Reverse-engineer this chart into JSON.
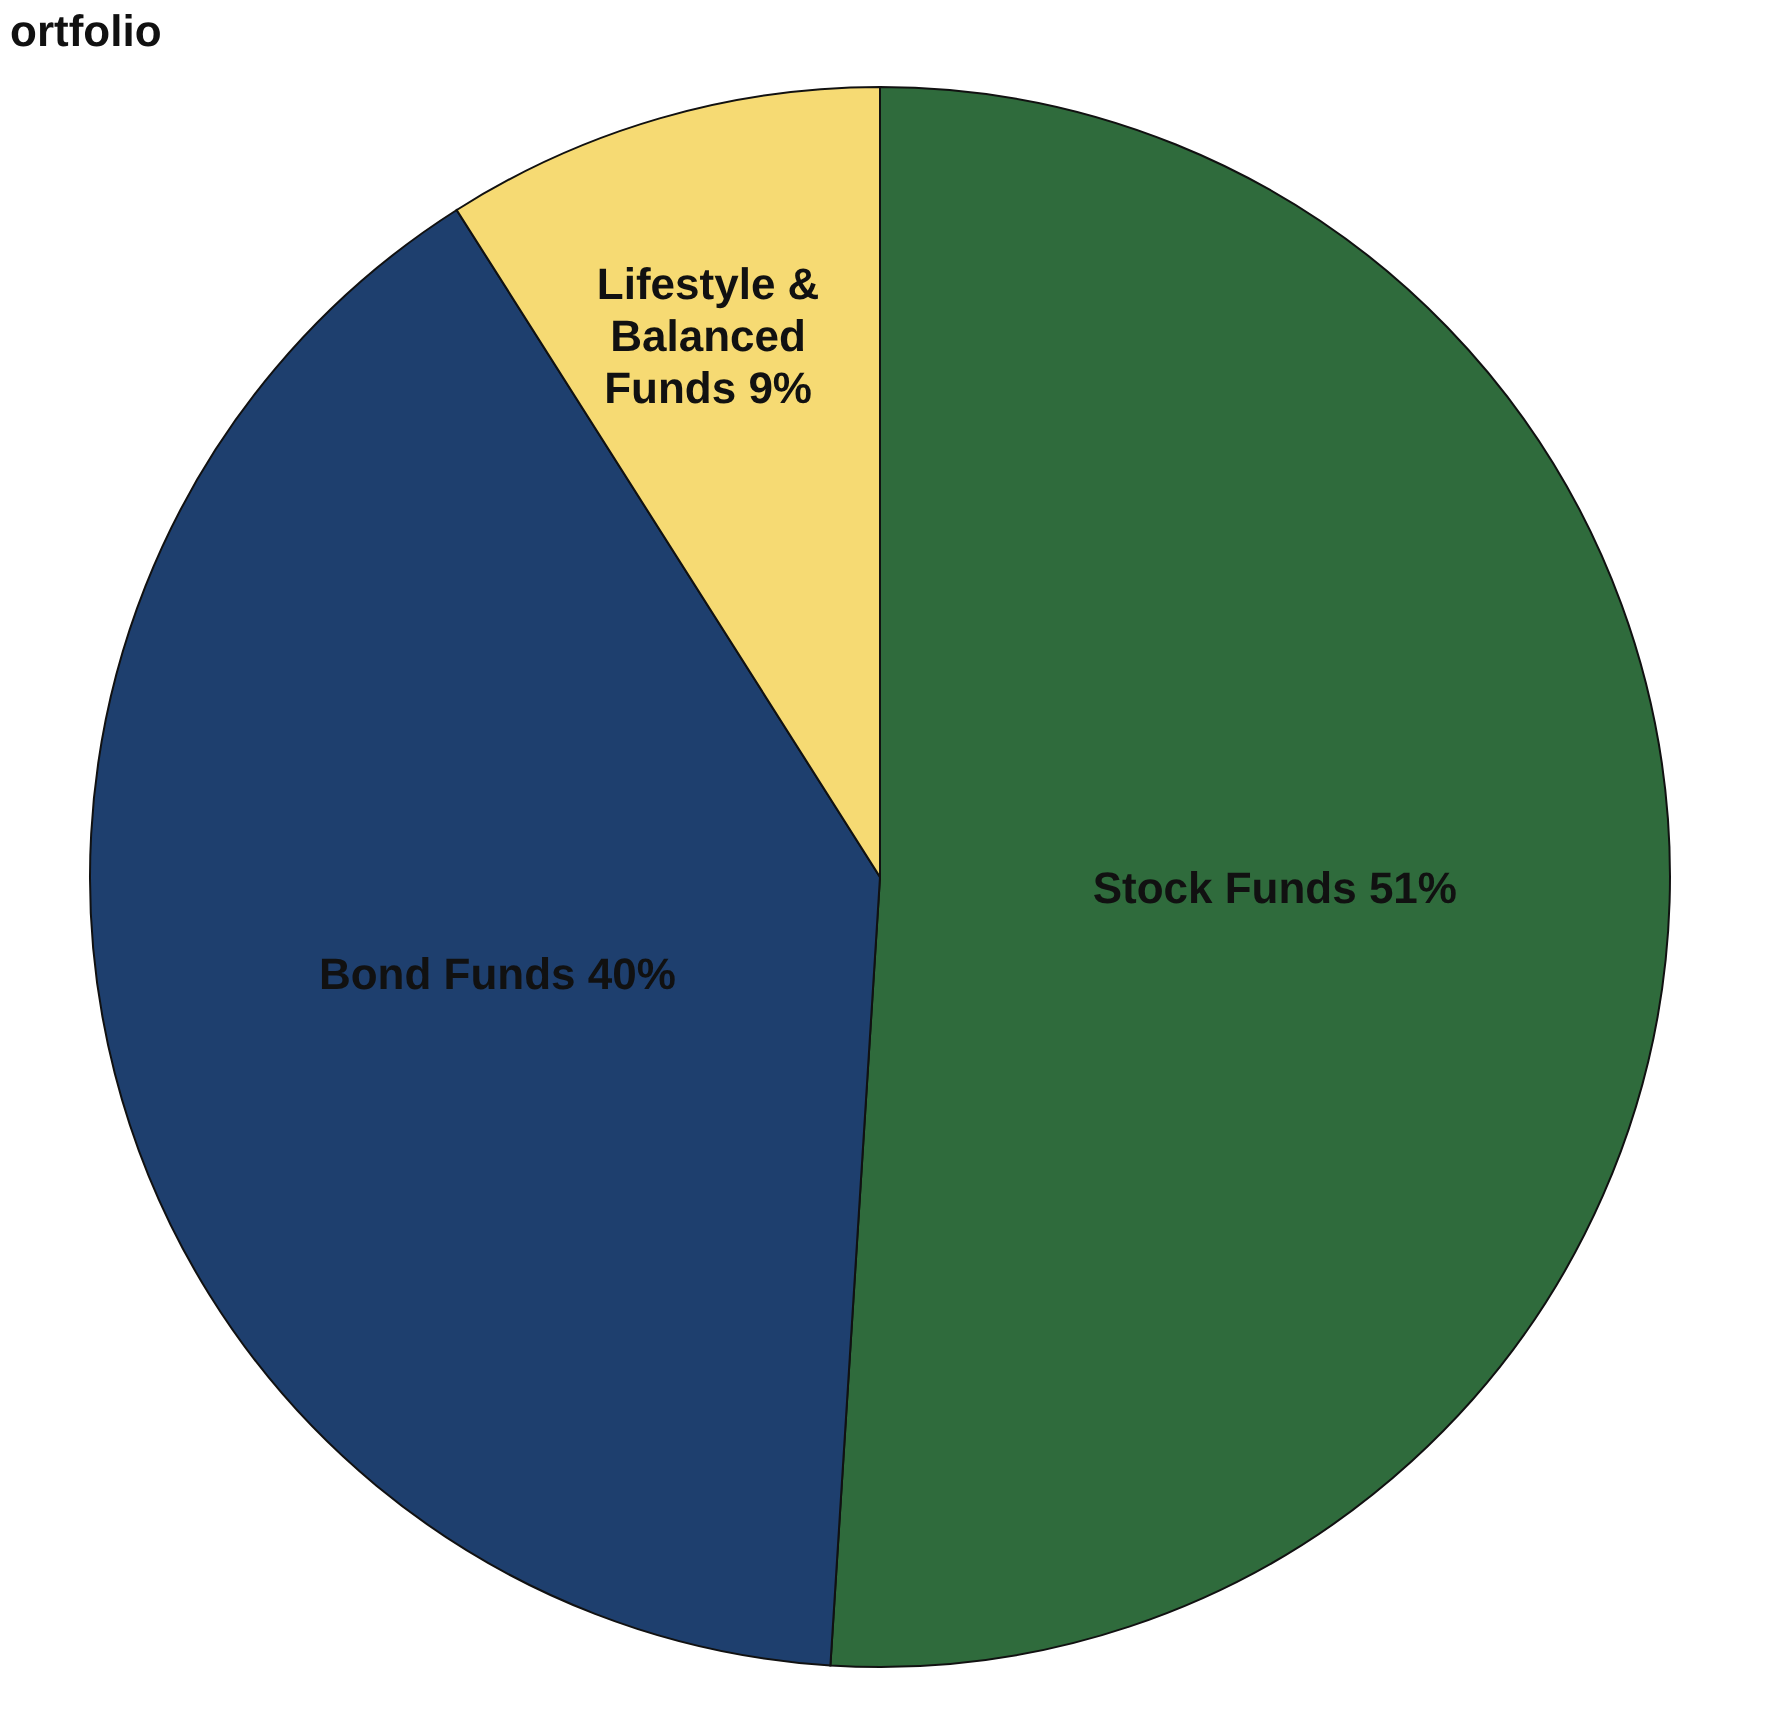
{
  "chart_data": {
    "type": "pie",
    "title": "ortfolio",
    "categories": [
      "Stock Funds",
      "Bond Funds",
      "Lifestyle & Balanced Funds"
    ],
    "values": [
      51,
      40,
      9
    ],
    "value_labels": [
      "51%",
      "40%",
      "9%"
    ],
    "colors": [
      "#2f6b3c",
      "#1e3f6e",
      "#f6da73"
    ],
    "legend": false
  }
}
